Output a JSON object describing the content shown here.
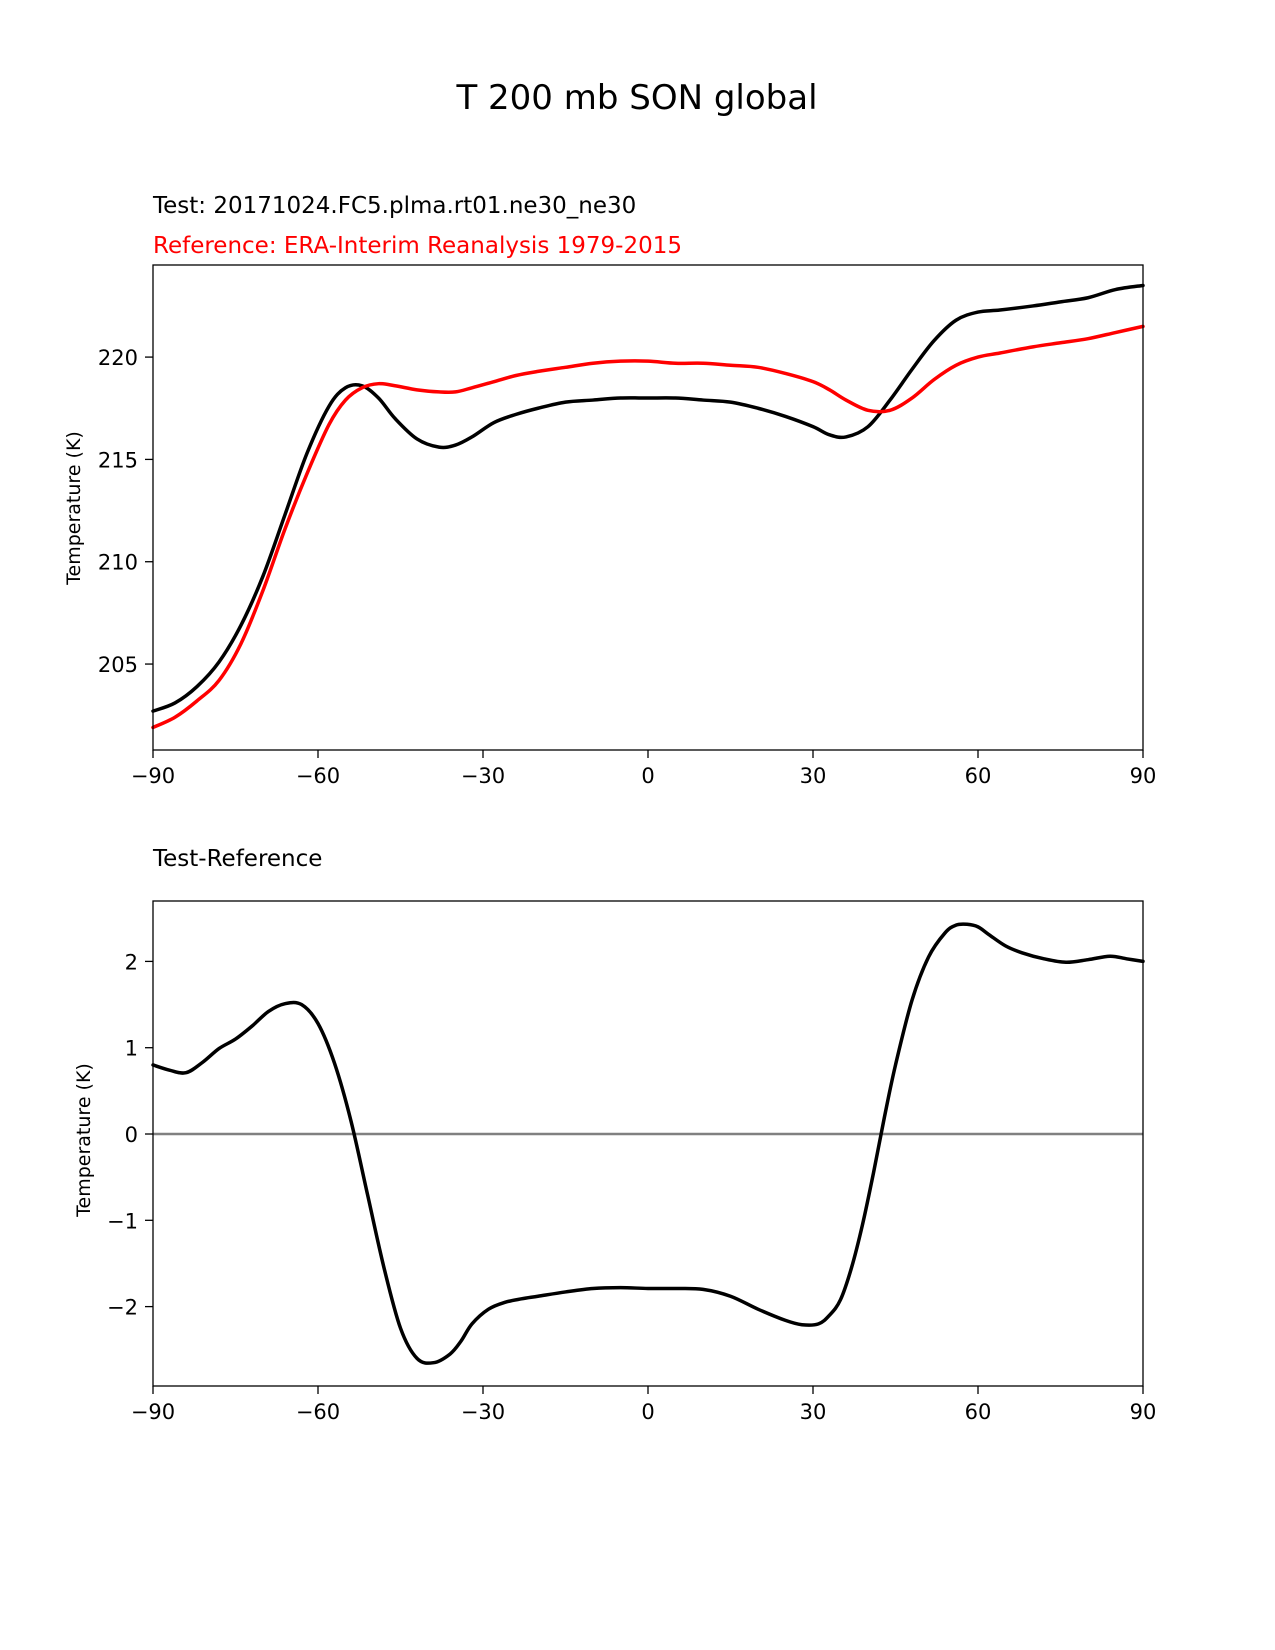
{
  "title": "T 200 mb SON global",
  "colors": {
    "test": "#000000",
    "reference": "#ff0000",
    "zero_line": "#808080"
  },
  "chart_data": [
    {
      "type": "line",
      "subtitle_test": "Test: 20171024.FC5.plma.rt01.ne30_ne30",
      "subtitle_reference": "Reference: ERA-Interim Reanalysis 1979-2015",
      "xlabel": "",
      "ylabel": "Temperature (K)",
      "xlim": [
        -90,
        90
      ],
      "ylim": [
        200.8,
        224.5
      ],
      "xticks": [
        -90,
        -60,
        -30,
        0,
        30,
        60,
        90
      ],
      "xtick_labels": [
        "−90",
        "−60",
        "−30",
        "0",
        "30",
        "60",
        "90"
      ],
      "yticks": [
        205,
        210,
        215,
        220
      ],
      "ytick_labels": [
        "205",
        "210",
        "215",
        "220"
      ],
      "series": [
        {
          "name": "Test",
          "color": "#000000",
          "x": [
            -90,
            -86,
            -82,
            -78,
            -74,
            -70,
            -66,
            -62,
            -58,
            -55,
            -52,
            -49,
            -46,
            -42,
            -38,
            -35,
            -32,
            -28,
            -24,
            -20,
            -15,
            -10,
            -5,
            0,
            5,
            10,
            15,
            20,
            25,
            30,
            33,
            36,
            40,
            44,
            48,
            52,
            56,
            60,
            64,
            70,
            75,
            80,
            85,
            90
          ],
          "values": [
            202.7,
            203.1,
            203.9,
            205.1,
            206.9,
            209.3,
            212.3,
            215.3,
            217.6,
            218.5,
            218.6,
            218.0,
            217.0,
            216.0,
            215.6,
            215.7,
            216.1,
            216.8,
            217.2,
            217.5,
            217.8,
            217.9,
            218.0,
            218.0,
            218.0,
            217.9,
            217.8,
            217.5,
            217.1,
            216.6,
            216.2,
            216.1,
            216.6,
            217.9,
            219.4,
            220.8,
            221.8,
            222.2,
            222.3,
            222.5,
            222.7,
            222.9,
            223.3,
            223.5
          ]
        },
        {
          "name": "Reference",
          "color": "#ff0000",
          "x": [
            -90,
            -86,
            -82,
            -78,
            -74,
            -70,
            -66,
            -62,
            -58,
            -55,
            -52,
            -49,
            -46,
            -42,
            -38,
            -35,
            -32,
            -28,
            -24,
            -20,
            -15,
            -10,
            -5,
            0,
            5,
            10,
            15,
            20,
            25,
            30,
            33,
            36,
            40,
            44,
            48,
            52,
            56,
            60,
            64,
            70,
            75,
            80,
            85,
            90
          ],
          "values": [
            201.9,
            202.4,
            203.2,
            204.2,
            206.0,
            208.6,
            211.6,
            214.3,
            216.7,
            217.9,
            218.5,
            218.7,
            218.6,
            218.4,
            218.3,
            218.3,
            218.5,
            218.8,
            219.1,
            219.3,
            219.5,
            219.7,
            219.8,
            219.8,
            219.7,
            219.7,
            219.6,
            219.5,
            219.2,
            218.8,
            218.4,
            217.9,
            217.4,
            217.4,
            218.0,
            218.9,
            219.6,
            220.0,
            220.2,
            220.5,
            220.7,
            220.9,
            221.2,
            221.5
          ]
        }
      ]
    },
    {
      "type": "line",
      "subtitle": "Test-Reference",
      "xlabel": "",
      "ylabel": "Temperature (K)",
      "xlim": [
        -90,
        90
      ],
      "ylim": [
        -2.92,
        2.7
      ],
      "xticks": [
        -90,
        -60,
        -30,
        0,
        30,
        60,
        90
      ],
      "xtick_labels": [
        "−90",
        "−60",
        "−30",
        "0",
        "30",
        "60",
        "90"
      ],
      "yticks": [
        -2,
        -1,
        0,
        1,
        2
      ],
      "ytick_labels": [
        "−2",
        "−1",
        "0",
        "1",
        "2"
      ],
      "reference_line": 0,
      "series": [
        {
          "name": "Test-Reference",
          "color": "#000000",
          "x": [
            -90,
            -87,
            -84,
            -81,
            -78,
            -75,
            -72,
            -69,
            -66,
            -63,
            -60,
            -57,
            -54,
            -51,
            -48,
            -45,
            -42,
            -39,
            -36,
            -34,
            -32,
            -29,
            -26,
            -23,
            -20,
            -15,
            -10,
            -5,
            0,
            5,
            10,
            15,
            20,
            25,
            28,
            31,
            33,
            35,
            37,
            39,
            41,
            43,
            45,
            48,
            51,
            54,
            56,
            58,
            60,
            62,
            65,
            68,
            72,
            76,
            80,
            84,
            87,
            90
          ],
          "values": [
            0.8,
            0.74,
            0.71,
            0.83,
            0.99,
            1.1,
            1.25,
            1.42,
            1.51,
            1.5,
            1.28,
            0.82,
            0.15,
            -0.7,
            -1.55,
            -2.25,
            -2.6,
            -2.65,
            -2.55,
            -2.4,
            -2.2,
            -2.03,
            -1.95,
            -1.91,
            -1.88,
            -1.83,
            -1.79,
            -1.78,
            -1.79,
            -1.79,
            -1.8,
            -1.88,
            -2.03,
            -2.16,
            -2.21,
            -2.2,
            -2.1,
            -1.92,
            -1.55,
            -1.05,
            -0.45,
            0.2,
            0.8,
            1.55,
            2.05,
            2.33,
            2.42,
            2.43,
            2.4,
            2.31,
            2.18,
            2.1,
            2.03,
            1.99,
            2.02,
            2.06,
            2.03,
            2.0
          ]
        }
      ]
    }
  ]
}
